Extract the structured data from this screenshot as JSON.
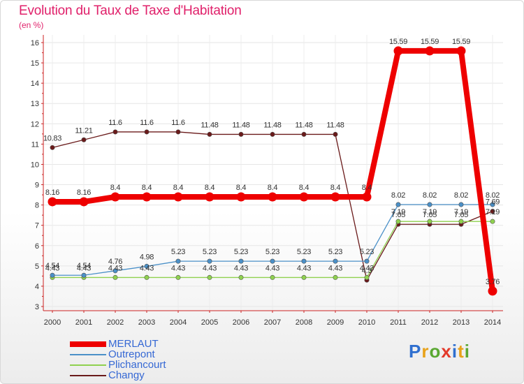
{
  "chart_data": {
    "type": "line",
    "title": "Evolution du Taux de Taxe d'Habitation",
    "ylabel": "(en %)",
    "xlabel": "",
    "x": [
      2000,
      2001,
      2002,
      2003,
      2004,
      2005,
      2006,
      2007,
      2008,
      2009,
      2010,
      2011,
      2012,
      2013,
      2014
    ],
    "ylim": [
      3,
      16
    ],
    "yticks": [
      3,
      4,
      5,
      6,
      7,
      8,
      9,
      10,
      11,
      12,
      13,
      14,
      15,
      16
    ],
    "grid": true,
    "legend_position": "bottom-left",
    "series": [
      {
        "name": "MERLAUT",
        "color": "#ee0000",
        "values": [
          8.16,
          8.16,
          8.4,
          8.4,
          8.4,
          8.4,
          8.4,
          8.4,
          8.4,
          8.4,
          8.4,
          15.59,
          15.59,
          15.59,
          3.76
        ],
        "labels": [
          "8.16",
          "8.16",
          "8.4",
          "8.4",
          "8.4",
          "8.4",
          "8.4",
          "8.4",
          "8.4",
          "8.4",
          "8.4",
          "15.59",
          "15.59",
          "15.59",
          "3.76"
        ],
        "emphasis": true
      },
      {
        "name": "Outrepont",
        "color": "#4a90c8",
        "values": [
          4.54,
          4.54,
          4.76,
          4.98,
          5.23,
          5.23,
          5.23,
          5.23,
          5.23,
          5.23,
          5.23,
          8.02,
          8.02,
          8.02,
          8.02
        ],
        "labels": [
          "4.54",
          "4.54",
          "4.76",
          "4.98",
          "5.23",
          "5.23",
          "5.23",
          "5.23",
          "5.23",
          "5.23",
          "5.23",
          "8.02",
          "8.02",
          "8.02",
          "8.02"
        ]
      },
      {
        "name": "Plichancourt",
        "color": "#8fd14f",
        "values": [
          4.43,
          4.43,
          4.43,
          4.43,
          4.43,
          4.43,
          4.43,
          4.43,
          4.43,
          4.43,
          4.43,
          7.19,
          7.19,
          7.19,
          7.19
        ],
        "labels": [
          "4.43",
          "4.43",
          "4.43",
          "4.43",
          "4.43",
          "4.43",
          "4.43",
          "4.43",
          "4.43",
          "4.43",
          "4.43",
          "7.19",
          "7.19",
          "7.19",
          "7.19"
        ]
      },
      {
        "name": "Changy",
        "color": "#6a1a1a",
        "values": [
          10.83,
          11.21,
          11.6,
          11.6,
          11.6,
          11.48,
          11.48,
          11.48,
          11.48,
          11.48,
          4.3,
          7.05,
          7.05,
          7.05,
          7.69
        ],
        "labels": [
          "10.83",
          "11.21",
          "11.6",
          "11.6",
          "11.6",
          "11.48",
          "11.48",
          "11.48",
          "11.48",
          "11.48",
          "4.3",
          "7.05",
          "7.05",
          "7.05",
          "7.69"
        ]
      }
    ]
  },
  "logo": {
    "letters": [
      "P",
      "r",
      "o",
      "x",
      "i",
      "t",
      "i"
    ],
    "colors": [
      "#2f6fcf",
      "#e8a21a",
      "#5aa832",
      "#e33a2b",
      "#2f6fcf",
      "#e8a21a",
      "#5aa832"
    ]
  }
}
